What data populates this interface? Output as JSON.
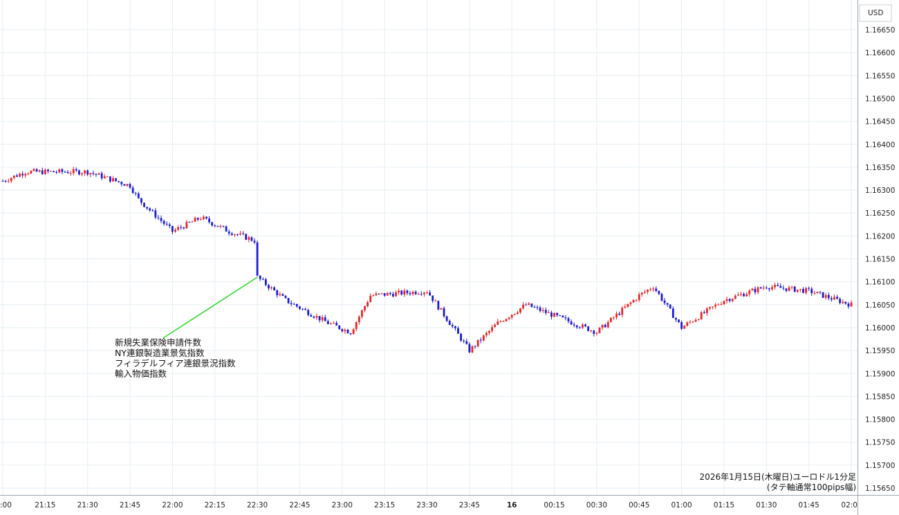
{
  "chart_data": {
    "type": "candlestick",
    "currency": "USD",
    "colors": {
      "up": "#ee2222",
      "down": "#1a1ad6",
      "annotation_line": "#33dd33",
      "grid": "#e6eef3",
      "axis": "#9aa4ab"
    },
    "ylim": [
      1.1565,
      1.16675
    ],
    "y_ticks": [
      "1.16650",
      "1.16600",
      "1.16550",
      "1.16500",
      "1.16450",
      "1.16400",
      "1.16350",
      "1.16300",
      "1.16250",
      "1.16200",
      "1.16150",
      "1.16100",
      "1.16050",
      "1.16000",
      "1.15950",
      "1.15900",
      "1.15850",
      "1.15800",
      "1.15750",
      "1.15700",
      "1.15650"
    ],
    "x_ticks": [
      {
        "label": ":00",
        "bold": false
      },
      {
        "label": "21:15",
        "bold": false
      },
      {
        "label": "21:30",
        "bold": false
      },
      {
        "label": "21:45",
        "bold": false
      },
      {
        "label": "22:00",
        "bold": false
      },
      {
        "label": "22:15",
        "bold": false
      },
      {
        "label": "22:30",
        "bold": false
      },
      {
        "label": "22:45",
        "bold": false
      },
      {
        "label": "23:00",
        "bold": false
      },
      {
        "label": "23:15",
        "bold": false
      },
      {
        "label": "23:30",
        "bold": false
      },
      {
        "label": "23:45",
        "bold": false
      },
      {
        "label": "16",
        "bold": true
      },
      {
        "label": "00:15",
        "bold": false
      },
      {
        "label": "00:30",
        "bold": false
      },
      {
        "label": "00:45",
        "bold": false
      },
      {
        "label": "01:00",
        "bold": false
      },
      {
        "label": "01:15",
        "bold": false
      },
      {
        "label": "01:30",
        "bold": false
      },
      {
        "label": "01:45",
        "bold": false
      },
      {
        "label": "02:0",
        "bold": false
      }
    ],
    "annotation": {
      "lines": [
        "新規失業保険申請件数",
        "NY連銀製造業景気指数",
        "フィラデルフィア連銀景況指数",
        "輸入物価指数"
      ],
      "pointer_time": "22:30",
      "pointer_price": 1.1611
    },
    "caption": [
      "2026年1月15日(木曜日)ユーロドル1分足",
      "(タテ軸通常100pips幅)"
    ],
    "key_points": [
      {
        "t": "21:00",
        "price": 1.1632
      },
      {
        "t": "21:08",
        "price": 1.1634
      },
      {
        "t": "21:30",
        "price": 1.1634
      },
      {
        "t": "21:45",
        "price": 1.1631
      },
      {
        "t": "21:48",
        "price": 1.1628
      },
      {
        "t": "22:00",
        "price": 1.1621
      },
      {
        "t": "22:10",
        "price": 1.1624
      },
      {
        "t": "22:20",
        "price": 1.1621
      },
      {
        "t": "22:29",
        "price": 1.1619
      },
      {
        "t": "22:30",
        "price": 1.1611
      },
      {
        "t": "22:40",
        "price": 1.1606
      },
      {
        "t": "22:55",
        "price": 1.1601
      },
      {
        "t": "23:03",
        "price": 1.1599
      },
      {
        "t": "23:10",
        "price": 1.1607
      },
      {
        "t": "23:30",
        "price": 1.1608
      },
      {
        "t": "23:45",
        "price": 1.1595
      },
      {
        "t": "23:55",
        "price": 1.1601
      },
      {
        "t": "00:05",
        "price": 1.1605
      },
      {
        "t": "00:30",
        "price": 1.1599
      },
      {
        "t": "00:45",
        "price": 1.1607
      },
      {
        "t": "00:50",
        "price": 1.1609
      },
      {
        "t": "01:00",
        "price": 1.16
      },
      {
        "t": "01:15",
        "price": 1.1606
      },
      {
        "t": "01:30",
        "price": 1.1609
      },
      {
        "t": "01:45",
        "price": 1.1608
      },
      {
        "t": "02:00",
        "price": 1.1605
      }
    ]
  }
}
